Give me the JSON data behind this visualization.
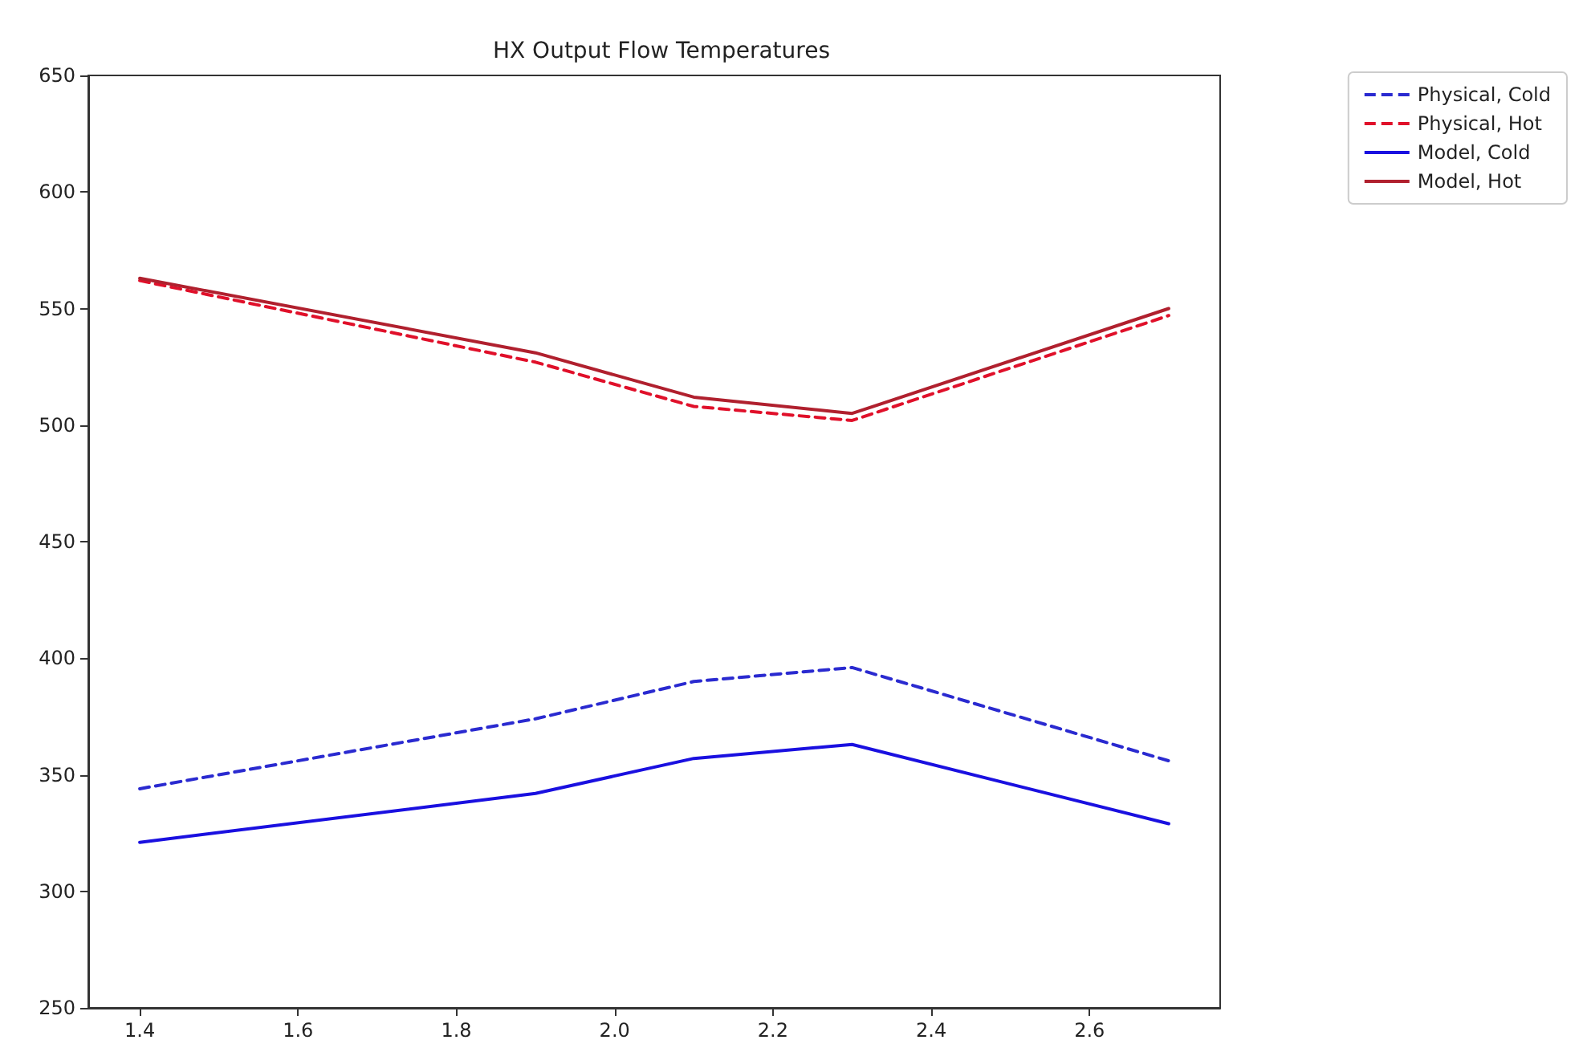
{
  "chart_data": {
    "type": "line",
    "title": "HX Output Flow Temperatures",
    "x": [
      1.4,
      1.9,
      2.1,
      2.3,
      2.7
    ],
    "series": [
      {
        "name": "Physical, Cold",
        "color": "#2a2ad0",
        "line_style": "dashed",
        "values": [
          344,
          374,
          390,
          396,
          356
        ]
      },
      {
        "name": "Physical, Hot",
        "color": "#e0102a",
        "line_style": "dashed",
        "values": [
          562,
          527,
          508,
          502,
          547
        ]
      },
      {
        "name": "Model, Cold",
        "color": "#1a10e0",
        "line_style": "solid",
        "values": [
          321,
          342,
          357,
          363,
          329
        ]
      },
      {
        "name": "Model, Hot",
        "color": "#b0202e",
        "line_style": "solid",
        "values": [
          563,
          531,
          512,
          505,
          550
        ]
      }
    ],
    "xlim": [
      1.335,
      2.765
    ],
    "xticks": [
      1.4,
      1.6,
      1.8,
      {
        "value": 2,
        "label": "2.0"
      },
      2.2,
      2.4,
      2.6
    ],
    "ylim": [
      250,
      650
    ],
    "yticks": [
      250,
      300,
      350,
      400,
      450,
      500,
      550,
      600,
      650
    ],
    "grid": false,
    "legend": "top right",
    "marker": "none"
  }
}
